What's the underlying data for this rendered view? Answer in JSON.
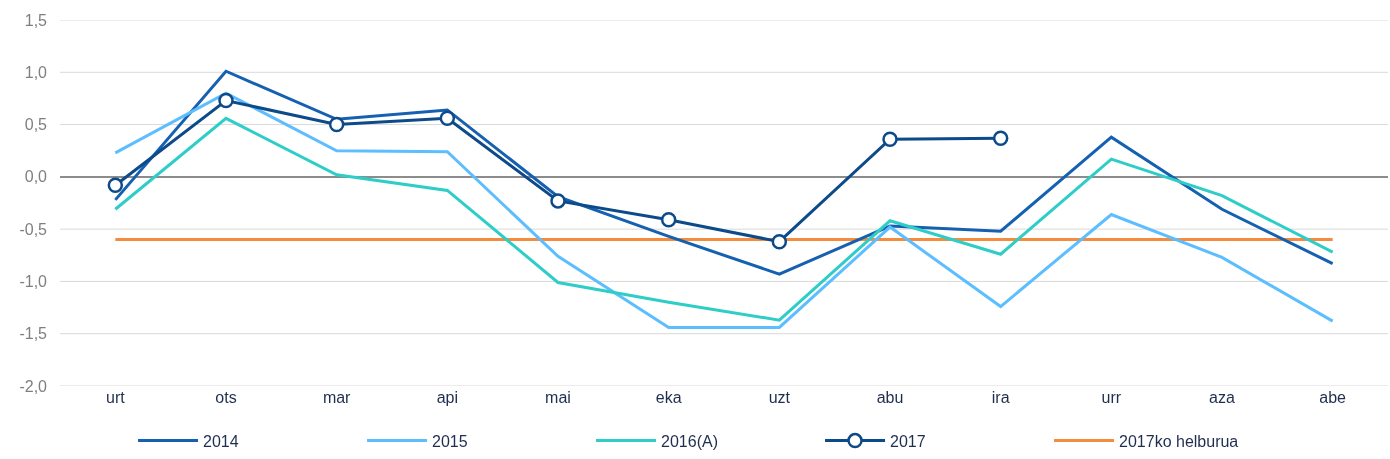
{
  "chart_data": {
    "type": "line",
    "categories": [
      "urt",
      "ots",
      "mar",
      "api",
      "mai",
      "eka",
      "uzt",
      "abu",
      "ira",
      "urr",
      "aza",
      "abe"
    ],
    "series": [
      {
        "name": "2014",
        "color": "#1560b0",
        "values": [
          -0.22,
          1.01,
          0.55,
          0.64,
          -0.19,
          -0.57,
          -0.93,
          -0.47,
          -0.52,
          0.38,
          -0.31,
          -0.83
        ]
      },
      {
        "name": "2015",
        "color": "#5cbeff",
        "values": [
          0.23,
          0.8,
          0.25,
          0.24,
          -0.76,
          -1.44,
          -1.44,
          -0.48,
          -1.24,
          -0.36,
          -0.77,
          -1.38
        ]
      },
      {
        "name": "2016(A)",
        "color": "#2ecdc8",
        "values": [
          -0.31,
          0.56,
          0.02,
          -0.13,
          -1.01,
          -1.2,
          -1.37,
          -0.42,
          -0.74,
          0.17,
          -0.18,
          -0.72
        ]
      },
      {
        "name": "2017",
        "color": "#0d4a8a",
        "marker": "circle",
        "values": [
          -0.08,
          0.73,
          0.5,
          0.56,
          -0.23,
          -0.41,
          -0.62,
          0.36,
          0.37,
          null,
          null,
          null
        ]
      },
      {
        "name": "2017ko helburua",
        "color": "#f58b3c",
        "values": [
          -0.6,
          -0.6,
          -0.6,
          -0.6,
          -0.6,
          -0.6,
          -0.6,
          -0.6,
          -0.6,
          -0.6,
          -0.6,
          -0.6
        ]
      }
    ],
    "ylim": [
      -2.0,
      1.5
    ],
    "yticks": [
      {
        "value": -2.0,
        "label": "-2,0"
      },
      {
        "value": -1.5,
        "label": "-1,5"
      },
      {
        "value": -1.0,
        "label": "-1,0"
      },
      {
        "value": -0.5,
        "label": "-0,5"
      },
      {
        "value": 0.0,
        "label": "0,0"
      },
      {
        "value": 0.5,
        "label": "0,5"
      },
      {
        "value": 1.0,
        "label": "1,0"
      },
      {
        "value": 1.5,
        "label": "1,5"
      }
    ],
    "grid": "y",
    "legend": "bottom",
    "marker": "none",
    "line_style": "solid"
  }
}
